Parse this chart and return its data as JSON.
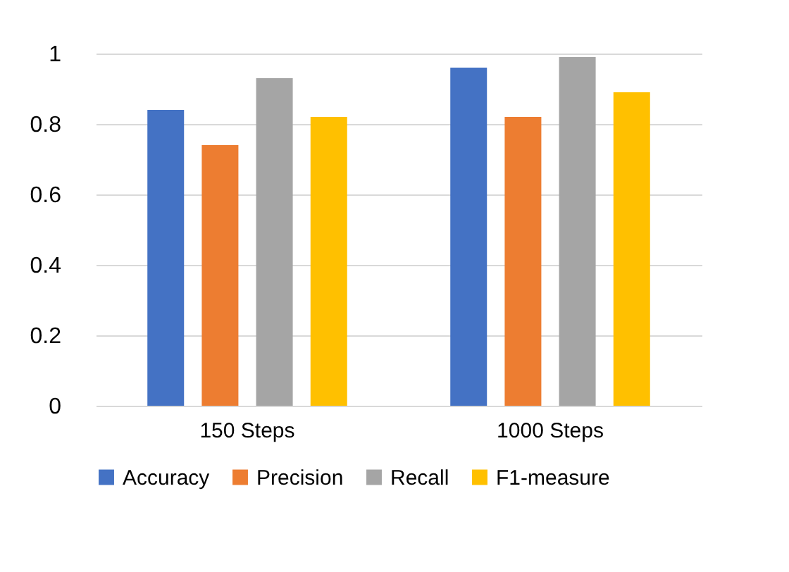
{
  "chart_data": {
    "type": "bar",
    "categories": [
      "150 Steps",
      "1000 Steps"
    ],
    "series": [
      {
        "name": "Accuracy",
        "color": "#4472c4",
        "values": [
          0.84,
          0.96
        ]
      },
      {
        "name": "Precision",
        "color": "#ed7d31",
        "values": [
          0.74,
          0.82
        ]
      },
      {
        "name": "Recall",
        "color": "#a5a5a5",
        "values": [
          0.93,
          0.99
        ]
      },
      {
        "name": "F1-measure",
        "color": "#ffc000",
        "values": [
          0.82,
          0.89
        ]
      }
    ],
    "ylim": [
      0,
      1
    ],
    "yticks": [
      0,
      0.2,
      0.4,
      0.6,
      0.8,
      1
    ],
    "grid": "y",
    "legend": "bottom"
  }
}
